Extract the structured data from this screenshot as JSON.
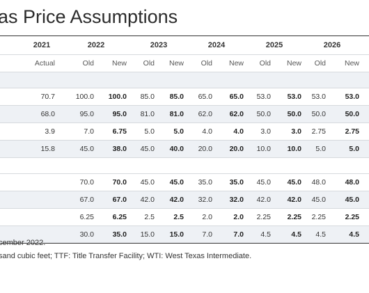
{
  "title": "as Price Assumptions",
  "years": [
    "2021",
    "2022",
    "2023",
    "2024",
    "2025",
    "2026"
  ],
  "subheaders": [
    "Actual",
    "Old",
    "New",
    "Old",
    "New",
    "Old",
    "New",
    "Old",
    "New",
    "Old",
    "New"
  ],
  "group1": [
    [
      "70.7",
      "100.0",
      "100.0",
      "85.0",
      "85.0",
      "65.0",
      "65.0",
      "53.0",
      "53.0",
      "53.0",
      "53.0"
    ],
    [
      "68.0",
      "95.0",
      "95.0",
      "81.0",
      "81.0",
      "62.0",
      "62.0",
      "50.0",
      "50.0",
      "50.0",
      "50.0"
    ],
    [
      "3.9",
      "7.0",
      "6.75",
      "5.0",
      "5.0",
      "4.0",
      "4.0",
      "3.0",
      "3.0",
      "2.75",
      "2.75"
    ],
    [
      "15.8",
      "45.0",
      "38.0",
      "45.0",
      "40.0",
      "20.0",
      "20.0",
      "10.0",
      "10.0",
      "5.0",
      "5.0"
    ]
  ],
  "group2": [
    [
      "",
      "70.0",
      "70.0",
      "45.0",
      "45.0",
      "35.0",
      "35.0",
      "45.0",
      "45.0",
      "48.0",
      "48.0"
    ],
    [
      "",
      "67.0",
      "67.0",
      "42.0",
      "42.0",
      "32.0",
      "32.0",
      "42.0",
      "42.0",
      "45.0",
      "45.0"
    ],
    [
      "",
      "6.25",
      "6.25",
      "2.5",
      "2.5",
      "2.0",
      "2.0",
      "2.25",
      "2.25",
      "2.25",
      "2.25"
    ],
    [
      "",
      "30.0",
      "35.0",
      "15.0",
      "15.0",
      "7.0",
      "7.0",
      "4.5",
      "4.5",
      "4.5",
      "4.5"
    ]
  ],
  "notes": [
    "cember 2022.",
    "sand cubic feet; TTF: Title Transfer Facility; WTI: West Texas Intermediate."
  ]
}
